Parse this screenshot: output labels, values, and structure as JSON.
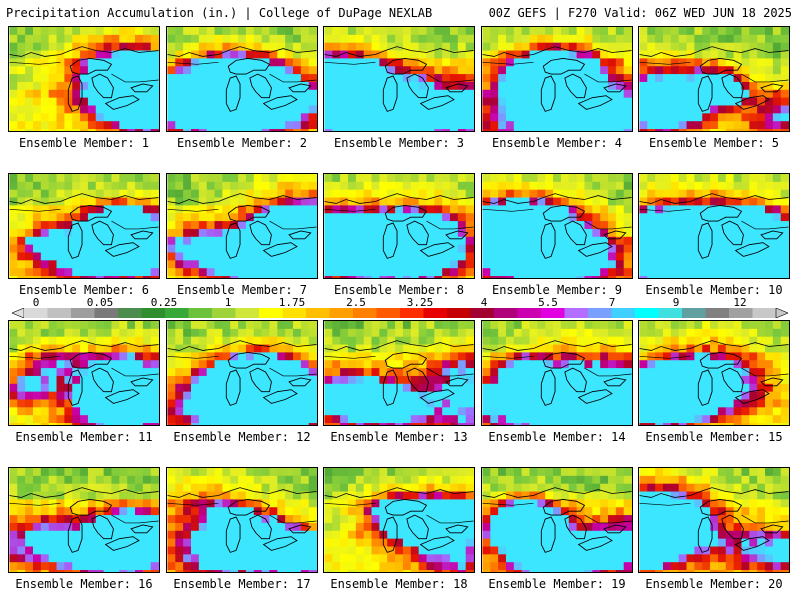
{
  "header": {
    "left_title": "Precipitation Accumulation (in.) | College of DuPage NEXLAB",
    "right_title": "00Z GEFS | F270 Valid: 06Z WED JUN 18 2025"
  },
  "colorbar": {
    "labels": [
      "0",
      "0.05",
      "0.25",
      "1",
      "1.75",
      "2.5",
      "3.25",
      "4",
      "5.5",
      "7",
      "9",
      "12"
    ],
    "colors": [
      "#d9d9d9",
      "#c0c0c0",
      "#9e9e9e",
      "#7a7a7a",
      "#4c8c4c",
      "#2f8f2f",
      "#38a838",
      "#6cc23a",
      "#9ed43a",
      "#cfe63a",
      "#ffff00",
      "#ffe000",
      "#ffbf00",
      "#ff9f00",
      "#ff7f00",
      "#ff5a00",
      "#ff2e00",
      "#e60000",
      "#c40000",
      "#a10030",
      "#b0007a",
      "#cc00b0",
      "#e000e0",
      "#b46eff",
      "#7aa0ff",
      "#40d0ff",
      "#00ffff",
      "#40e0e0",
      "#60a0a0",
      "#808080",
      "#a0a0a0",
      "#c8c8c8"
    ]
  },
  "panels": [
    {
      "label": "Ensemble Member: 1"
    },
    {
      "label": "Ensemble Member: 2"
    },
    {
      "label": "Ensemble Member: 3"
    },
    {
      "label": "Ensemble Member: 4"
    },
    {
      "label": "Ensemble Member: 5"
    },
    {
      "label": "Ensemble Member: 6"
    },
    {
      "label": "Ensemble Member: 7"
    },
    {
      "label": "Ensemble Member: 8"
    },
    {
      "label": "Ensemble Member: 9"
    },
    {
      "label": "Ensemble Member: 10"
    },
    {
      "label": "Ensemble Member: 11"
    },
    {
      "label": "Ensemble Member: 12"
    },
    {
      "label": "Ensemble Member: 13"
    },
    {
      "label": "Ensemble Member: 14"
    },
    {
      "label": "Ensemble Member: 15"
    },
    {
      "label": "Ensemble Member: 16"
    },
    {
      "label": "Ensemble Member: 17"
    },
    {
      "label": "Ensemble Member: 18"
    },
    {
      "label": "Ensemble Member: 19"
    },
    {
      "label": "Ensemble Member: 20"
    }
  ]
}
